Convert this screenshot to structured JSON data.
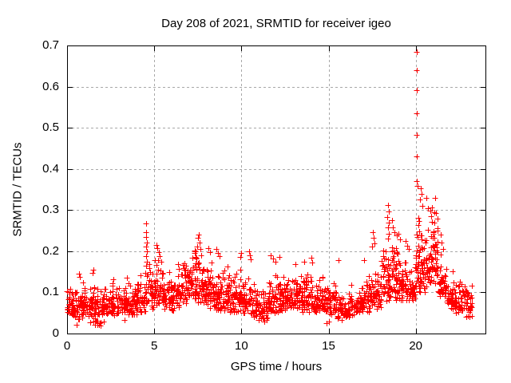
{
  "chart_data": {
    "type": "scatter",
    "title": "Day 208 of 2021, SRMTID for receiver igeo",
    "xlabel": "GPS time / hours",
    "ylabel": "SRMTID / TECUs",
    "xlim": [
      0,
      24
    ],
    "ylim": [
      0,
      0.7
    ],
    "xticks": [
      {
        "v": 0,
        "label": "0"
      },
      {
        "v": 5,
        "label": "5"
      },
      {
        "v": 10,
        "label": "10"
      },
      {
        "v": 15,
        "label": "15"
      },
      {
        "v": 20,
        "label": "20"
      }
    ],
    "yticks": [
      {
        "v": 0,
        "label": "0"
      },
      {
        "v": 0.1,
        "label": "0.1"
      },
      {
        "v": 0.2,
        "label": "0.2"
      },
      {
        "v": 0.3,
        "label": "0.3"
      },
      {
        "v": 0.4,
        "label": "0.4"
      },
      {
        "v": 0.5,
        "label": "0.5"
      },
      {
        "v": 0.6,
        "label": "0.6"
      },
      {
        "v": 0.7,
        "label": "0.7"
      }
    ],
    "grid": true,
    "legend": "none",
    "marker": "plus",
    "colors": {
      "points": "#ff0000",
      "grid": "#a8a8a8",
      "axis": "#000000",
      "background": "#ffffff",
      "text": "#000000"
    },
    "notable_points": [
      [
        0.55,
        0.022
      ],
      [
        1.62,
        0.022
      ],
      [
        1.35,
        0.028
      ],
      [
        14.9,
        0.026
      ],
      [
        15.0,
        0.03
      ],
      [
        2.1,
        0.03
      ],
      [
        3.3,
        0.032
      ],
      [
        11.3,
        0.03
      ],
      [
        22.9,
        0.04
      ],
      [
        23.1,
        0.04
      ],
      [
        0.7,
        0.146
      ],
      [
        0.75,
        0.138
      ],
      [
        1.52,
        0.156
      ],
      [
        1.48,
        0.148
      ],
      [
        2.65,
        0.132
      ],
      [
        3.45,
        0.135
      ],
      [
        4.2,
        0.142
      ],
      [
        4.55,
        0.268
      ],
      [
        4.55,
        0.247
      ],
      [
        4.52,
        0.234
      ],
      [
        4.57,
        0.222
      ],
      [
        4.54,
        0.212
      ],
      [
        4.56,
        0.2
      ],
      [
        4.53,
        0.188
      ],
      [
        4.58,
        0.175
      ],
      [
        4.55,
        0.165
      ],
      [
        5.12,
        0.215
      ],
      [
        5.18,
        0.207
      ],
      [
        5.25,
        0.197
      ],
      [
        5.3,
        0.188
      ],
      [
        5.2,
        0.178
      ],
      [
        6.35,
        0.168
      ],
      [
        6.4,
        0.158
      ],
      [
        7.55,
        0.24
      ],
      [
        7.5,
        0.232
      ],
      [
        7.6,
        0.222
      ],
      [
        7.45,
        0.212
      ],
      [
        7.65,
        0.205
      ],
      [
        7.35,
        0.196
      ],
      [
        7.7,
        0.19
      ],
      [
        8.12,
        0.208
      ],
      [
        8.2,
        0.198
      ],
      [
        8.55,
        0.205
      ],
      [
        8.65,
        0.196
      ],
      [
        8.75,
        0.188
      ],
      [
        9.2,
        0.162
      ],
      [
        9.95,
        0.186
      ],
      [
        10.0,
        0.196
      ],
      [
        10.45,
        0.2
      ],
      [
        10.5,
        0.19
      ],
      [
        10.55,
        0.18
      ],
      [
        11.7,
        0.19
      ],
      [
        11.8,
        0.182
      ],
      [
        11.95,
        0.174
      ],
      [
        12.2,
        0.186
      ],
      [
        13.1,
        0.168
      ],
      [
        13.6,
        0.175
      ],
      [
        14.0,
        0.184
      ],
      [
        14.05,
        0.172
      ],
      [
        15.55,
        0.178
      ],
      [
        17.05,
        0.178
      ],
      [
        17.48,
        0.212
      ],
      [
        17.53,
        0.247
      ],
      [
        17.58,
        0.232
      ],
      [
        17.62,
        0.22
      ],
      [
        18.4,
        0.312
      ],
      [
        18.44,
        0.296
      ],
      [
        18.38,
        0.284
      ],
      [
        18.47,
        0.27
      ],
      [
        18.42,
        0.257
      ],
      [
        18.45,
        0.243
      ],
      [
        18.4,
        0.23
      ],
      [
        18.62,
        0.275
      ],
      [
        18.7,
        0.258
      ],
      [
        18.8,
        0.246
      ],
      [
        18.9,
        0.238
      ],
      [
        19.0,
        0.242
      ],
      [
        19.1,
        0.228
      ],
      [
        19.4,
        0.225
      ],
      [
        19.5,
        0.214
      ],
      [
        19.6,
        0.205
      ],
      [
        20.07,
        0.685
      ],
      [
        20.07,
        0.64
      ],
      [
        20.08,
        0.592
      ],
      [
        20.07,
        0.536
      ],
      [
        20.08,
        0.482
      ],
      [
        20.07,
        0.43
      ],
      [
        20.08,
        0.37
      ],
      [
        20.12,
        0.358
      ],
      [
        20.28,
        0.352
      ],
      [
        20.33,
        0.34
      ],
      [
        20.25,
        0.326
      ],
      [
        20.4,
        0.31
      ],
      [
        20.62,
        0.33
      ],
      [
        20.7,
        0.305
      ],
      [
        20.82,
        0.298
      ],
      [
        20.95,
        0.306
      ],
      [
        21.05,
        0.295
      ],
      [
        21.12,
        0.33
      ],
      [
        21.18,
        0.292
      ],
      [
        20.9,
        0.286
      ],
      [
        21.25,
        0.28
      ],
      [
        21.08,
        0.27
      ],
      [
        21.45,
        0.24
      ],
      [
        21.5,
        0.222
      ],
      [
        21.55,
        0.205
      ],
      [
        21.42,
        0.192
      ],
      [
        22.1,
        0.152
      ]
    ],
    "density_bands": [
      {
        "x0": 0.0,
        "x1": 0.5,
        "lo": 0.04,
        "hi": 0.12,
        "n": 40
      },
      {
        "x0": 0.5,
        "x1": 1.0,
        "lo": 0.03,
        "hi": 0.14,
        "n": 42
      },
      {
        "x0": 1.0,
        "x1": 1.5,
        "lo": 0.04,
        "hi": 0.13,
        "n": 42
      },
      {
        "x0": 1.5,
        "x1": 2.0,
        "lo": 0.02,
        "hi": 0.13,
        "n": 42
      },
      {
        "x0": 2.0,
        "x1": 2.5,
        "lo": 0.04,
        "hi": 0.12,
        "n": 40
      },
      {
        "x0": 2.5,
        "x1": 3.0,
        "lo": 0.04,
        "hi": 0.13,
        "n": 40
      },
      {
        "x0": 3.0,
        "x1": 3.5,
        "lo": 0.05,
        "hi": 0.12,
        "n": 40
      },
      {
        "x0": 3.5,
        "x1": 4.0,
        "lo": 0.04,
        "hi": 0.13,
        "n": 40
      },
      {
        "x0": 4.0,
        "x1": 4.5,
        "lo": 0.05,
        "hi": 0.15,
        "n": 40
      },
      {
        "x0": 4.5,
        "x1": 5.0,
        "lo": 0.06,
        "hi": 0.19,
        "n": 42
      },
      {
        "x0": 5.0,
        "x1": 5.5,
        "lo": 0.07,
        "hi": 0.2,
        "n": 44
      },
      {
        "x0": 5.5,
        "x1": 6.0,
        "lo": 0.06,
        "hi": 0.16,
        "n": 40
      },
      {
        "x0": 6.0,
        "x1": 6.5,
        "lo": 0.05,
        "hi": 0.16,
        "n": 40
      },
      {
        "x0": 6.5,
        "x1": 7.0,
        "lo": 0.07,
        "hi": 0.19,
        "n": 44
      },
      {
        "x0": 7.0,
        "x1": 7.5,
        "lo": 0.08,
        "hi": 0.22,
        "n": 48
      },
      {
        "x0": 7.5,
        "x1": 8.0,
        "lo": 0.07,
        "hi": 0.2,
        "n": 46
      },
      {
        "x0": 8.0,
        "x1": 8.5,
        "lo": 0.06,
        "hi": 0.19,
        "n": 44
      },
      {
        "x0": 8.5,
        "x1": 9.0,
        "lo": 0.05,
        "hi": 0.17,
        "n": 44
      },
      {
        "x0": 9.0,
        "x1": 9.5,
        "lo": 0.05,
        "hi": 0.16,
        "n": 44
      },
      {
        "x0": 9.5,
        "x1": 10.0,
        "lo": 0.05,
        "hi": 0.17,
        "n": 44
      },
      {
        "x0": 10.0,
        "x1": 10.5,
        "lo": 0.05,
        "hi": 0.15,
        "n": 44
      },
      {
        "x0": 10.5,
        "x1": 11.0,
        "lo": 0.04,
        "hi": 0.13,
        "n": 40
      },
      {
        "x0": 11.0,
        "x1": 11.5,
        "lo": 0.03,
        "hi": 0.12,
        "n": 40
      },
      {
        "x0": 11.5,
        "x1": 12.0,
        "lo": 0.05,
        "hi": 0.15,
        "n": 44
      },
      {
        "x0": 12.0,
        "x1": 12.5,
        "lo": 0.05,
        "hi": 0.16,
        "n": 44
      },
      {
        "x0": 12.5,
        "x1": 13.0,
        "lo": 0.06,
        "hi": 0.14,
        "n": 40
      },
      {
        "x0": 13.0,
        "x1": 13.5,
        "lo": 0.06,
        "hi": 0.16,
        "n": 44
      },
      {
        "x0": 13.5,
        "x1": 14.0,
        "lo": 0.05,
        "hi": 0.17,
        "n": 44
      },
      {
        "x0": 14.0,
        "x1": 14.5,
        "lo": 0.05,
        "hi": 0.14,
        "n": 40
      },
      {
        "x0": 14.5,
        "x1": 15.0,
        "lo": 0.05,
        "hi": 0.14,
        "n": 40
      },
      {
        "x0": 15.0,
        "x1": 15.5,
        "lo": 0.04,
        "hi": 0.13,
        "n": 38
      },
      {
        "x0": 15.5,
        "x1": 16.0,
        "lo": 0.03,
        "hi": 0.11,
        "n": 34
      },
      {
        "x0": 16.0,
        "x1": 16.5,
        "lo": 0.04,
        "hi": 0.12,
        "n": 38
      },
      {
        "x0": 16.5,
        "x1": 17.0,
        "lo": 0.05,
        "hi": 0.13,
        "n": 38
      },
      {
        "x0": 17.0,
        "x1": 17.5,
        "lo": 0.05,
        "hi": 0.15,
        "n": 40
      },
      {
        "x0": 17.5,
        "x1": 18.0,
        "lo": 0.06,
        "hi": 0.16,
        "n": 40
      },
      {
        "x0": 18.0,
        "x1": 18.5,
        "lo": 0.08,
        "hi": 0.22,
        "n": 44
      },
      {
        "x0": 18.5,
        "x1": 19.0,
        "lo": 0.08,
        "hi": 0.26,
        "n": 48
      },
      {
        "x0": 19.0,
        "x1": 19.5,
        "lo": 0.08,
        "hi": 0.2,
        "n": 44
      },
      {
        "x0": 19.5,
        "x1": 20.0,
        "lo": 0.08,
        "hi": 0.17,
        "n": 40
      },
      {
        "x0": 20.0,
        "x1": 20.3,
        "lo": 0.1,
        "hi": 0.3,
        "n": 40
      },
      {
        "x0": 20.3,
        "x1": 20.8,
        "lo": 0.1,
        "hi": 0.26,
        "n": 48
      },
      {
        "x0": 20.8,
        "x1": 21.3,
        "lo": 0.12,
        "hi": 0.28,
        "n": 48
      },
      {
        "x0": 21.3,
        "x1": 21.8,
        "lo": 0.09,
        "hi": 0.17,
        "n": 40
      },
      {
        "x0": 21.8,
        "x1": 22.2,
        "lo": 0.06,
        "hi": 0.14,
        "n": 38
      },
      {
        "x0": 22.2,
        "x1": 23.0,
        "lo": 0.05,
        "hi": 0.13,
        "n": 60
      },
      {
        "x0": 23.0,
        "x1": 23.25,
        "lo": 0.04,
        "hi": 0.12,
        "n": 20
      }
    ]
  }
}
